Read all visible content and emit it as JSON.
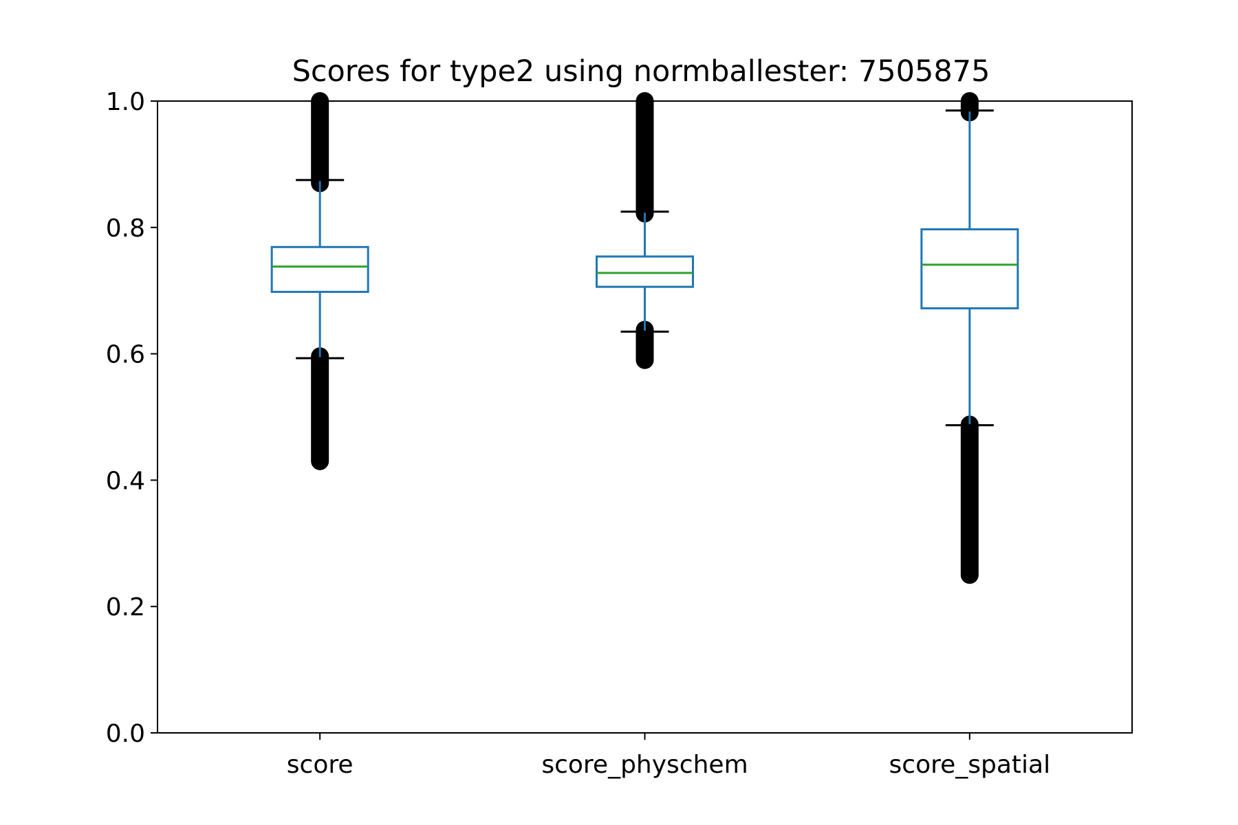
{
  "chart_data": {
    "type": "boxplot",
    "title": "Scores for type2 using normballester: 7505875",
    "xlabel": "",
    "ylabel": "",
    "ylim": [
      0.0,
      1.0
    ],
    "yticks": [
      {
        "value": 0.0,
        "label": "0.0"
      },
      {
        "value": 0.2,
        "label": "0.2"
      },
      {
        "value": 0.4,
        "label": "0.4"
      },
      {
        "value": 0.6,
        "label": "0.6"
      },
      {
        "value": 0.8,
        "label": "0.8"
      },
      {
        "value": 1.0,
        "label": "1.0"
      }
    ],
    "grid": false,
    "colors": {
      "box": "#1f77b4",
      "median": "#2ca02c",
      "whisker": "#1f77b4",
      "cap": "#000000",
      "outlier": "#000000",
      "axis": "#000000"
    },
    "categories": [
      "score",
      "score_physchem",
      "score_spatial"
    ],
    "boxes": [
      {
        "name": "score",
        "q1": 0.698,
        "median": 0.738,
        "q3": 0.769,
        "whisker_low": 0.593,
        "whisker_high": 0.875,
        "outliers_high": [
          0.87,
          1.0
        ],
        "outliers_low": [
          0.43,
          0.596
        ]
      },
      {
        "name": "score_physchem",
        "q1": 0.706,
        "median": 0.728,
        "q3": 0.754,
        "whisker_low": 0.635,
        "whisker_high": 0.825,
        "outliers_high": [
          0.822,
          1.0
        ],
        "outliers_low": [
          0.59,
          0.638
        ]
      },
      {
        "name": "score_spatial",
        "q1": 0.672,
        "median": 0.741,
        "q3": 0.797,
        "whisker_low": 0.487,
        "whisker_high": 0.985,
        "outliers_high": [
          0.982,
          1.0
        ],
        "outliers_low": [
          0.25,
          0.488
        ]
      }
    ]
  }
}
